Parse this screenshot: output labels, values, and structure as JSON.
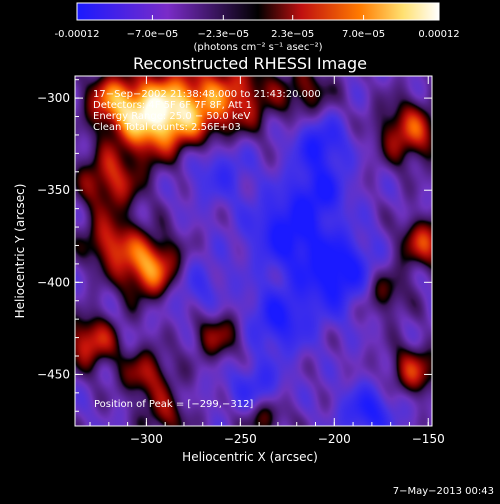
{
  "chart_data": {
    "type": "heatmap",
    "title": "Reconstructed RHESSI Image",
    "xlabel": "Heliocentric X (arcsec)",
    "ylabel": "Heliocentric Y (arcsec)",
    "xlim": [
      -338,
      -148
    ],
    "ylim": [
      -478,
      -288
    ],
    "x_ticks": [
      -300,
      -250,
      -200,
      -150
    ],
    "y_ticks": [
      -300,
      -350,
      -400,
      -450
    ],
    "x_tick_labels": [
      "−300",
      "−250",
      "−200",
      "−150"
    ],
    "y_tick_labels": [
      "−300",
      "−350",
      "−400",
      "−450"
    ],
    "colorbar": {
      "tick_values": [
        -0.00012,
        -7e-05,
        -2.3e-05,
        2.3e-05,
        7e-05,
        0.00012
      ],
      "tick_labels": [
        "-0.00012",
        "−7.0e−05",
        "−2.3e−05",
        "2.3e−05",
        "7.0e−05",
        "0.00012"
      ],
      "range": [
        -0.00012,
        0.00012
      ],
      "colors": [
        "#1a1aff",
        "#7a2cc8",
        "#000000",
        "#c01010",
        "#ff7a00",
        "#ffe070",
        "#ffffff"
      ]
    },
    "units_label": "(photons cm⁻² s⁻¹ asec⁻²)",
    "info_lines": [
      "17−Sep−2002 21:38:48.000 to 21:43:20.000",
      "Detectors: 4F 5F 6F 7F 8F, Att 1",
      "Energy Range: 25.0 − 50.0 keV",
      "Clean  Total counts: 2.56E+03"
    ],
    "peak_label": "Position of Peak = [−299,−312]",
    "peak": [
      -299,
      -312
    ],
    "blobs": [
      {
        "x": -300,
        "y": -310,
        "amp": 1.0,
        "s": 14
      },
      {
        "x": -278,
        "y": -305,
        "amp": 0.8,
        "s": 16
      },
      {
        "x": -320,
        "y": -300,
        "amp": 0.6,
        "s": 10
      },
      {
        "x": -250,
        "y": -298,
        "amp": 0.55,
        "s": 14
      },
      {
        "x": -215,
        "y": -296,
        "amp": 0.45,
        "s": 10
      },
      {
        "x": -298,
        "y": -392,
        "amp": 0.95,
        "s": 12
      },
      {
        "x": -320,
        "y": -378,
        "amp": 0.6,
        "s": 10
      },
      {
        "x": -320,
        "y": -345,
        "amp": 0.65,
        "s": 12
      },
      {
        "x": -330,
        "y": -432,
        "amp": 0.7,
        "s": 10
      },
      {
        "x": -300,
        "y": -450,
        "amp": 0.55,
        "s": 10
      },
      {
        "x": -262,
        "y": -428,
        "amp": 0.5,
        "s": 10
      },
      {
        "x": -160,
        "y": -318,
        "amp": 0.7,
        "s": 12
      },
      {
        "x": -152,
        "y": -378,
        "amp": 0.65,
        "s": 10
      },
      {
        "x": -175,
        "y": -405,
        "amp": 0.5,
        "s": 10
      },
      {
        "x": -158,
        "y": -448,
        "amp": 0.6,
        "s": 10
      },
      {
        "x": -238,
        "y": -472,
        "amp": 0.5,
        "s": 9
      },
      {
        "x": -290,
        "y": -473,
        "amp": 0.45,
        "s": 9
      },
      {
        "x": -208,
        "y": -325,
        "amp": -0.6,
        "s": 10
      },
      {
        "x": -225,
        "y": -372,
        "amp": -0.7,
        "s": 14
      },
      {
        "x": -198,
        "y": -395,
        "amp": -0.8,
        "s": 14
      },
      {
        "x": -230,
        "y": -420,
        "amp": -0.6,
        "s": 12
      },
      {
        "x": -262,
        "y": -338,
        "amp": -0.4,
        "s": 12
      },
      {
        "x": -242,
        "y": -458,
        "amp": -0.5,
        "s": 10
      },
      {
        "x": -182,
        "y": -470,
        "amp": -0.6,
        "s": 10
      },
      {
        "x": -208,
        "y": -350,
        "amp": -0.55,
        "s": 10
      },
      {
        "x": -275,
        "y": -402,
        "amp": -0.35,
        "s": 12
      }
    ]
  },
  "footer": {
    "timestamp": "7−May−2013 00:43"
  }
}
